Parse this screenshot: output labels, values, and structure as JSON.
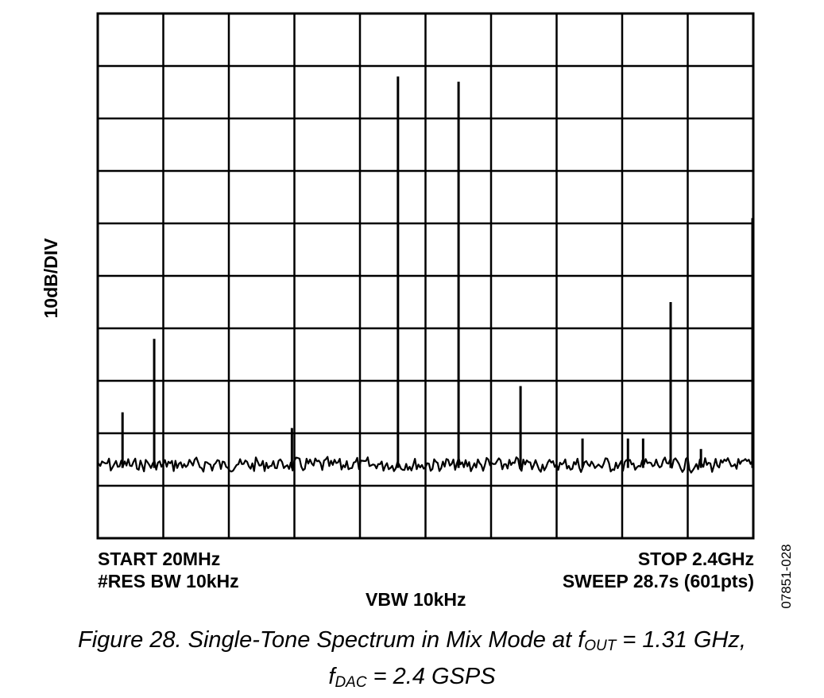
{
  "chart_data": {
    "type": "spectrum",
    "ylabel": "10dB/DIV",
    "x_range_mhz": [
      20,
      2400
    ],
    "y_divisions": 10,
    "x_divisions": 10,
    "grid": true,
    "noise_floor_div": 1.4,
    "spurs": [
      {
        "x_mhz": 110,
        "level_div": 2.4
      },
      {
        "x_mhz": 225,
        "level_div": 3.8
      },
      {
        "x_mhz": 725,
        "level_div": 2.1
      },
      {
        "x_mhz": 1110,
        "level_div": 8.8
      },
      {
        "x_mhz": 1330,
        "level_div": 8.7
      },
      {
        "x_mhz": 1555,
        "level_div": 2.9
      },
      {
        "x_mhz": 1780,
        "level_div": 1.9
      },
      {
        "x_mhz": 1945,
        "level_div": 1.9
      },
      {
        "x_mhz": 2000,
        "level_div": 1.9
      },
      {
        "x_mhz": 2100,
        "level_div": 4.5
      },
      {
        "x_mhz": 2210,
        "level_div": 1.7
      },
      {
        "x_mhz": 2400,
        "level_div": 6.1
      }
    ]
  },
  "footer": {
    "start": "START 20MHz",
    "res_bw": "#RES BW 10kHz",
    "vbw": "VBW 10kHz",
    "stop": "STOP 2.4GHz",
    "sweep": "SWEEP 28.7s (601pts)"
  },
  "figure_id": "07851-028",
  "caption": {
    "line1_prefix": "Figure 28. Single-Tone Spectrum in Mix Mode at f",
    "line1_sub": "OUT",
    "line1_suffix": " = 1.31 GHz,",
    "line2_prefix": "f",
    "line2_sub": "DAC",
    "line2_suffix": " = 2.4 GSPS"
  }
}
